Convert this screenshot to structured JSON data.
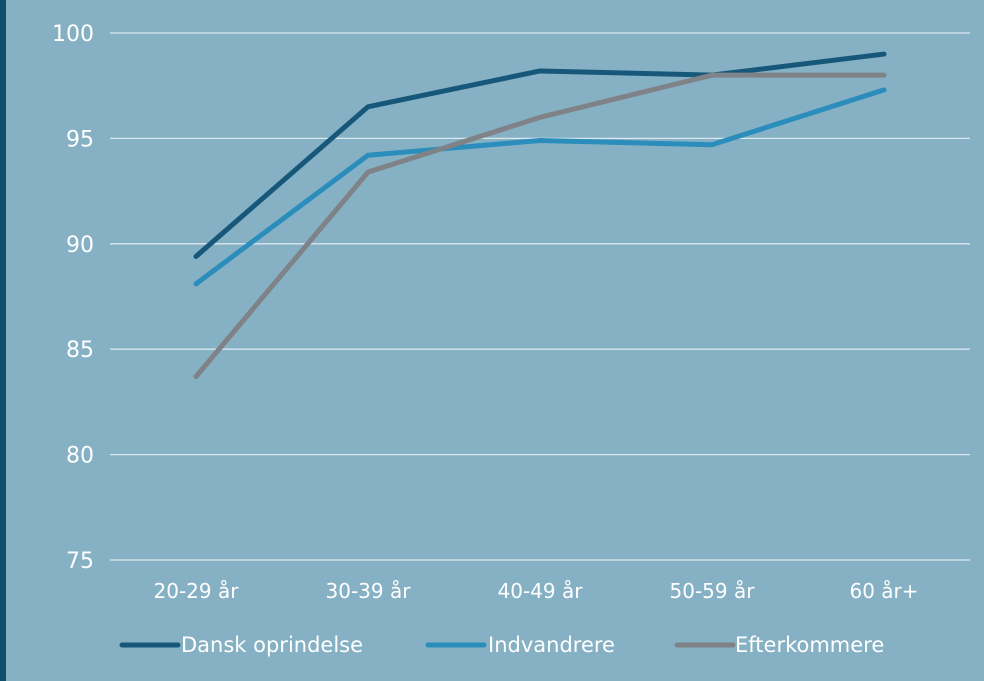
{
  "chart_data": {
    "type": "line",
    "title": "",
    "xlabel": "",
    "ylabel": "",
    "categories": [
      "20-29 år",
      "30-39 år",
      "40-49 år",
      "50-59 år",
      "60 år+"
    ],
    "ylim": [
      75,
      100
    ],
    "yticks": [
      75,
      80,
      85,
      90,
      95,
      100
    ],
    "grid": true,
    "legend_position": "bottom",
    "series": [
      {
        "name": "Dansk oprindelse",
        "color": "#17587a",
        "values": [
          89.4,
          96.5,
          98.2,
          98.0,
          99.0
        ]
      },
      {
        "name": "Indvandrere",
        "color": "#2b8dbb",
        "values": [
          88.1,
          94.2,
          94.9,
          94.7,
          97.3
        ]
      },
      {
        "name": "Efterkommere",
        "color": "#7f8286",
        "values": [
          83.7,
          93.4,
          96.0,
          98.0,
          98.0
        ]
      }
    ]
  }
}
